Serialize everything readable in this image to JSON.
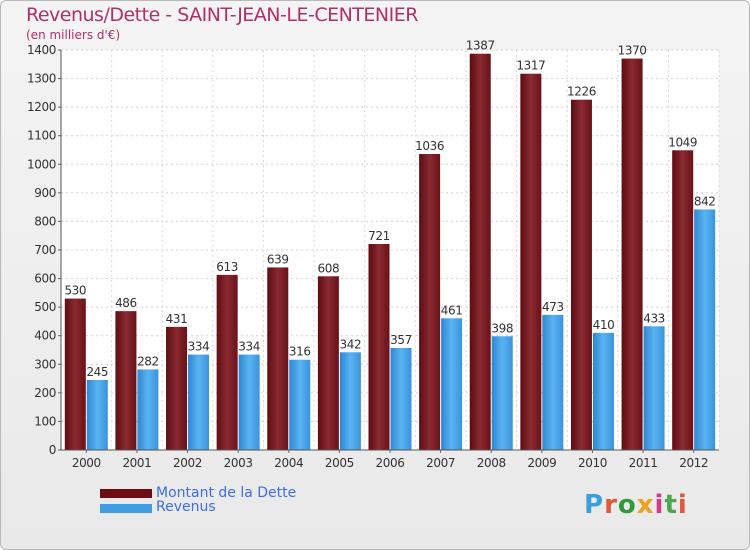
{
  "title": "Revenus/Dette - SAINT-JEAN-LE-CENTENIER",
  "subtitle": "(en milliers d'€)",
  "logo": "Proxiti",
  "colors": {
    "dette": "#7a1a22",
    "revenus": "#3f9de4",
    "title": "#b1306a",
    "legend_text": "#3d6fe0"
  },
  "legend": [
    {
      "label": "Montant de la Dette",
      "color": "#6b0d12"
    },
    {
      "label": "Revenus",
      "color": "#3f9de4"
    }
  ],
  "chart_data": {
    "type": "bar",
    "categories": [
      "2000",
      "2001",
      "2002",
      "2003",
      "2004",
      "2005",
      "2006",
      "2007",
      "2008",
      "2009",
      "2010",
      "2011",
      "2012"
    ],
    "series": [
      {
        "name": "Montant de la Dette",
        "values": [
          530,
          486,
          431,
          613,
          639,
          608,
          721,
          1036,
          1387,
          1317,
          1226,
          1370,
          1049
        ]
      },
      {
        "name": "Revenus",
        "values": [
          245,
          282,
          334,
          334,
          316,
          342,
          357,
          461,
          398,
          473,
          410,
          433,
          842
        ]
      }
    ],
    "ylim": [
      0,
      1400
    ],
    "yticks": [
      0,
      100,
      200,
      300,
      400,
      500,
      600,
      700,
      800,
      900,
      1000,
      1100,
      1200,
      1300,
      1400
    ],
    "grid": true,
    "legend_position": "bottom-left"
  }
}
